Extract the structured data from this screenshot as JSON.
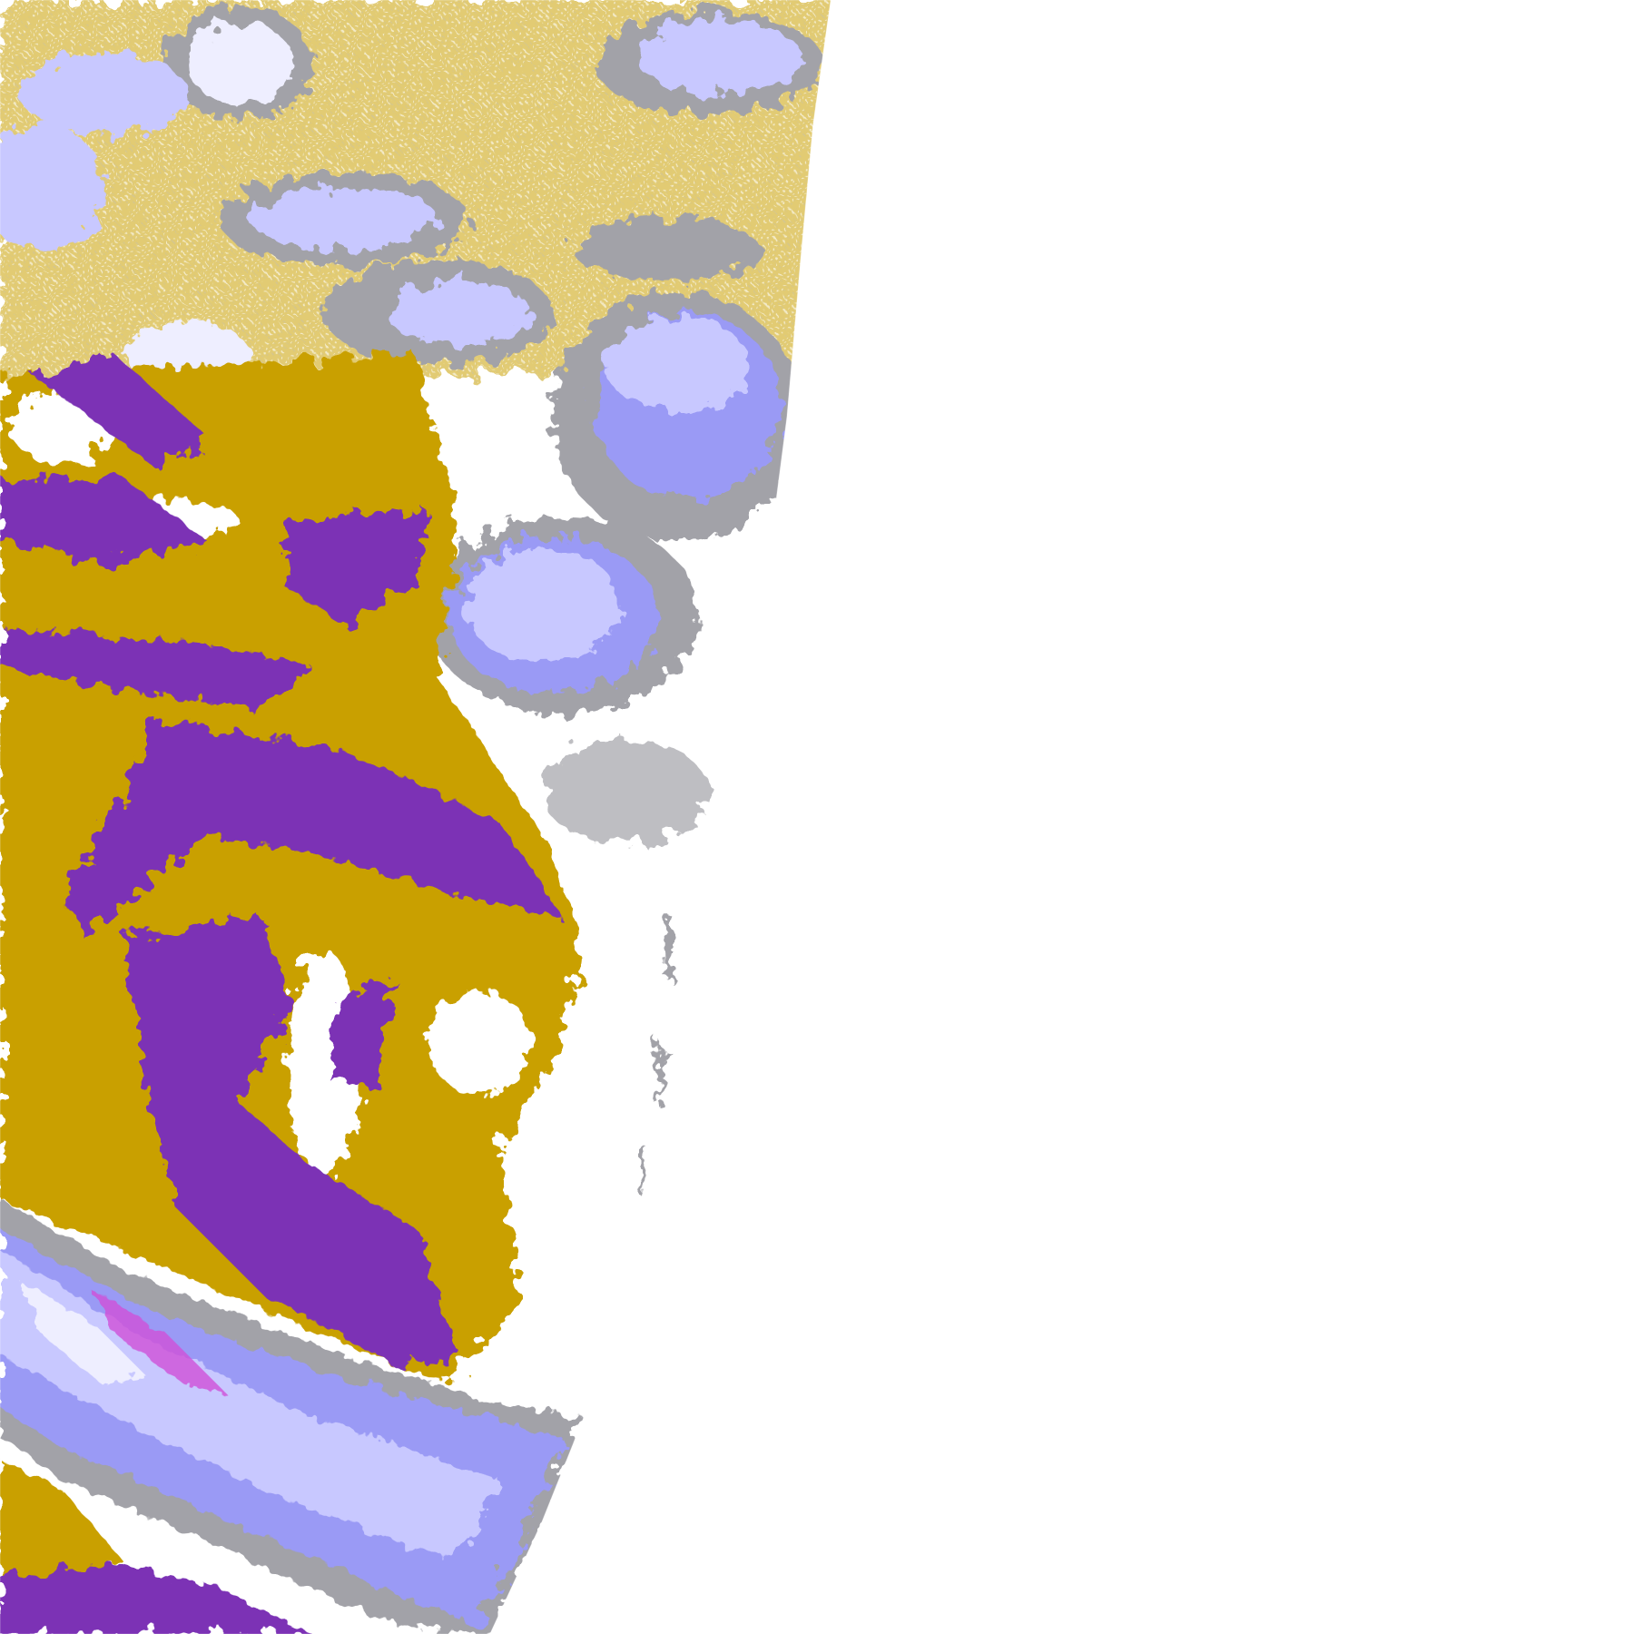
{
  "palette": {
    "background": "#ffffff",
    "low_cloud_gold": "#c9a000",
    "mid_cloud_purple": "#7b33b5",
    "high_cloud_lavender": "#c8c8ff",
    "thick_cloud_periwinkle": "#9a9af5",
    "cloud_edge_gray": "#a2a2a8",
    "bright_cloud_white": "#eeeeff",
    "mixed_magenta": "#d050d8"
  }
}
